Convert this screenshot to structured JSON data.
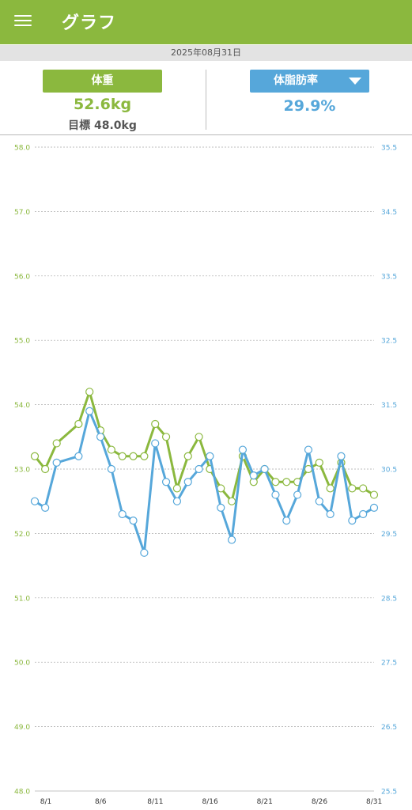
{
  "header": {
    "title": "グラフ",
    "menu_icon": "hamburger-menu-icon"
  },
  "date": "2025年08月31日",
  "summary": {
    "weight_label": "体重",
    "weight_value": "52.6kg",
    "goal_text": "目標 48.0kg",
    "fat_label": "体脂肪率",
    "fat_value": "29.9%",
    "fat_dropdown_icon": "dropdown-triangle-icon"
  },
  "colors": {
    "weight": "#8bb83e",
    "fat": "#56a7da",
    "header": "#8bb83e",
    "date_bar": "#e3e3e3"
  },
  "chart_data": {
    "type": "line",
    "x": [
      1,
      2,
      3,
      4,
      5,
      6,
      7,
      8,
      9,
      10,
      11,
      12,
      13,
      14,
      15,
      16,
      17,
      18,
      19,
      20,
      21,
      22,
      23,
      24,
      25,
      26,
      27,
      28,
      29,
      30,
      31
    ],
    "x_ticks": [
      1,
      6,
      11,
      16,
      21,
      26,
      31
    ],
    "x_tick_labels": [
      "8/1",
      "8/6",
      "8/11",
      "8/16",
      "8/21",
      "8/26",
      "8/31"
    ],
    "y_left_ticks": [
      "58.0",
      "57.0",
      "56.0",
      "55.0",
      "54.0",
      "53.0",
      "52.0",
      "51.0",
      "50.0",
      "49.0",
      "48.0"
    ],
    "y_right_ticks": [
      "35.5",
      "34.5",
      "33.5",
      "32.5",
      "31.5",
      "30.5",
      "29.5",
      "28.5",
      "27.5",
      "26.5",
      "25.5"
    ],
    "ylim_left": [
      48.0,
      58.0
    ],
    "ylim_right": [
      25.5,
      35.5
    ],
    "grid": true,
    "series": [
      {
        "axis": "left",
        "color": "#8bb83e",
        "points": [
          [
            1,
            53.2
          ],
          [
            1.95,
            53.0
          ],
          [
            3,
            53.4
          ],
          [
            5,
            53.7
          ],
          [
            6,
            54.2
          ],
          [
            7,
            53.6
          ],
          [
            8,
            53.3
          ],
          [
            9,
            53.2
          ],
          [
            10,
            53.2
          ],
          [
            11,
            53.2
          ],
          [
            12,
            53.7
          ],
          [
            13,
            53.5
          ],
          [
            14,
            52.7
          ],
          [
            15,
            53.2
          ],
          [
            16,
            53.5
          ],
          [
            17,
            53.0
          ],
          [
            18,
            52.7
          ],
          [
            19,
            52.5
          ],
          [
            20,
            53.2
          ],
          [
            21,
            52.8
          ],
          [
            22,
            53.0
          ],
          [
            23,
            52.8
          ],
          [
            24,
            52.8
          ],
          [
            25,
            52.8
          ],
          [
            26,
            53.0
          ],
          [
            27,
            53.1
          ],
          [
            28,
            52.7
          ],
          [
            29,
            53.1
          ],
          [
            30,
            52.7
          ],
          [
            31,
            52.7
          ],
          [
            32,
            52.6
          ]
        ]
      },
      {
        "axis": "right",
        "color": "#56a7da",
        "points": [
          [
            1,
            30.0
          ],
          [
            1.95,
            29.9
          ],
          [
            3,
            30.6
          ],
          [
            5,
            30.7
          ],
          [
            6,
            31.4
          ],
          [
            7,
            31.0
          ],
          [
            8,
            30.5
          ],
          [
            9,
            29.8
          ],
          [
            10,
            29.7
          ],
          [
            11,
            29.2
          ],
          [
            12,
            30.9
          ],
          [
            13,
            30.3
          ],
          [
            14,
            30.0
          ],
          [
            15,
            30.3
          ],
          [
            16,
            30.5
          ],
          [
            17,
            30.7
          ],
          [
            18,
            29.9
          ],
          [
            19,
            29.4
          ],
          [
            20,
            30.8
          ],
          [
            21,
            30.4
          ],
          [
            22,
            30.5
          ],
          [
            23,
            30.1
          ],
          [
            24,
            29.7
          ],
          [
            25,
            30.1
          ],
          [
            26,
            30.8
          ],
          [
            27,
            30.0
          ],
          [
            28,
            29.8
          ],
          [
            29,
            30.7
          ],
          [
            30,
            29.7
          ],
          [
            31,
            29.8
          ],
          [
            32,
            29.9
          ]
        ]
      }
    ]
  }
}
